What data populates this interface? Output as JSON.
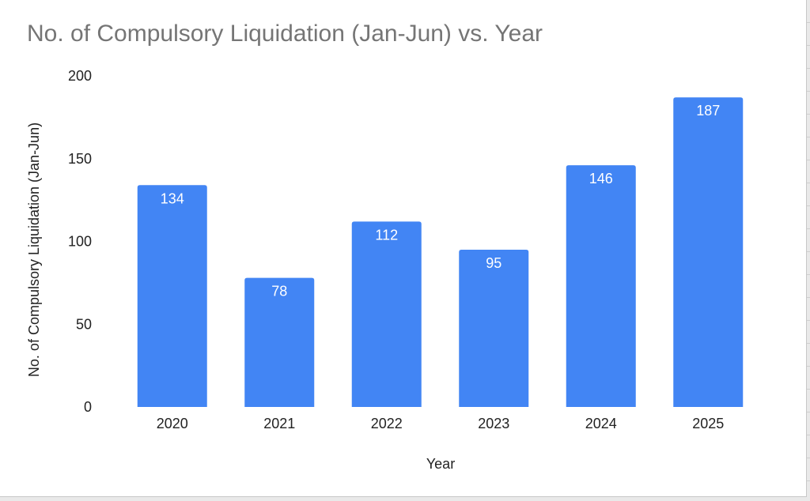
{
  "chart_data": {
    "type": "bar",
    "title": "No. of Compulsory Liquidation (Jan-Jun) vs. Year",
    "xlabel": "Year",
    "ylabel": "No. of Compulsory Liquidation (Jan-Jun)",
    "categories": [
      "2020",
      "2021",
      "2022",
      "2023",
      "2024",
      "2025"
    ],
    "values": [
      134,
      78,
      112,
      95,
      146,
      187
    ],
    "data_labels": [
      "134",
      "78",
      "112",
      "95",
      "146",
      "187"
    ],
    "ylim": [
      0,
      200
    ],
    "yticks": [
      0,
      50,
      100,
      150,
      200
    ],
    "ytick_labels": [
      "0",
      "50",
      "100",
      "150",
      "200"
    ],
    "bar_color": "#4285f4",
    "grid": false,
    "legend": "none"
  }
}
